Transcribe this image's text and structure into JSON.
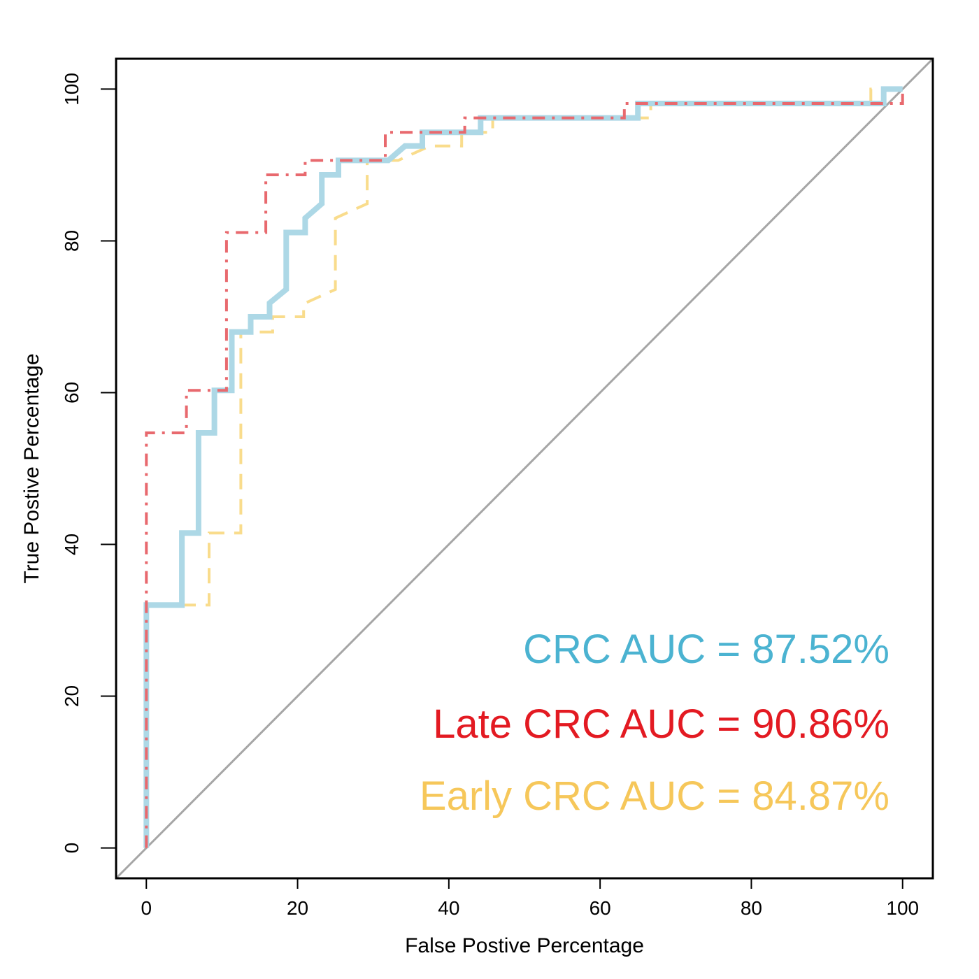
{
  "chart_data": {
    "type": "line",
    "title": "",
    "xlabel": "False Postive Percentage",
    "ylabel": "True Postive Percentage",
    "xlim": [
      -4,
      104
    ],
    "ylim": [
      -4,
      104
    ],
    "xticks": [
      0,
      20,
      40,
      60,
      80,
      100
    ],
    "yticks": [
      0,
      20,
      40,
      60,
      80,
      100
    ],
    "grid": false,
    "reference_line": {
      "x": [
        0,
        100
      ],
      "y": [
        0,
        100
      ],
      "color": "#a6a6a6"
    },
    "series": [
      {
        "name": "CRC",
        "color": "#add8e6",
        "style": "solid",
        "x": [
          0,
          0,
          4.7,
          4.7,
          6.9,
          6.9,
          9.0,
          9.0,
          11.3,
          11.3,
          13.8,
          13.8,
          16.3,
          16.3,
          18.5,
          18.5,
          21.0,
          21.0,
          23.2,
          23.2,
          25.4,
          25.4,
          32.0,
          34.2,
          36.5,
          36.5,
          44.2,
          44.2,
          65.0,
          65.0,
          97.5,
          97.5,
          100
        ],
        "y": [
          0,
          32.0,
          32.0,
          41.5,
          41.5,
          54.7,
          54.7,
          60.3,
          60.3,
          68.0,
          68.0,
          70.0,
          70.0,
          71.8,
          73.6,
          81.1,
          81.1,
          83.0,
          84.9,
          88.7,
          88.7,
          90.6,
          90.6,
          92.5,
          92.5,
          94.3,
          94.3,
          96.2,
          96.2,
          98.1,
          98.1,
          100,
          100
        ]
      },
      {
        "name": "Late CRC",
        "color": "#e8696e",
        "style": "dashdot",
        "x": [
          0,
          0,
          5.3,
          5.3,
          10.6,
          10.6,
          15.8,
          15.8,
          21.0,
          21.0,
          31.6,
          31.6,
          42.1,
          42.1,
          63.2,
          63.2,
          100,
          100
        ],
        "y": [
          0,
          54.7,
          54.7,
          60.3,
          60.3,
          81.1,
          81.1,
          88.7,
          88.7,
          90.6,
          90.6,
          94.3,
          94.3,
          96.2,
          96.2,
          98.1,
          98.1,
          100
        ]
      },
      {
        "name": "Early CRC",
        "color": "#f9dc8c",
        "style": "dashed",
        "x": [
          0,
          0,
          8.3,
          8.3,
          12.5,
          12.5,
          16.7,
          16.7,
          20.8,
          20.8,
          25.0,
          25.0,
          29.2,
          29.2,
          33.3,
          37.5,
          41.7,
          41.7,
          45.8,
          45.8,
          66.7,
          66.7,
          95.8,
          95.8,
          100
        ],
        "y": [
          0,
          32.0,
          32.0,
          41.5,
          41.5,
          68.0,
          68.0,
          70.0,
          70.0,
          71.7,
          73.6,
          83.0,
          84.9,
          90.6,
          90.6,
          92.5,
          92.5,
          94.3,
          94.3,
          96.2,
          96.2,
          98.1,
          98.1,
          100,
          100
        ]
      }
    ],
    "annotations": [
      {
        "text": "CRC AUC = 87.52%",
        "color": "#4bb3d1"
      },
      {
        "text": "Late CRC AUC = 90.86%",
        "color": "#e31a22"
      },
      {
        "text": "Early CRC AUC = 84.87%",
        "color": "#f6c75a"
      }
    ]
  }
}
